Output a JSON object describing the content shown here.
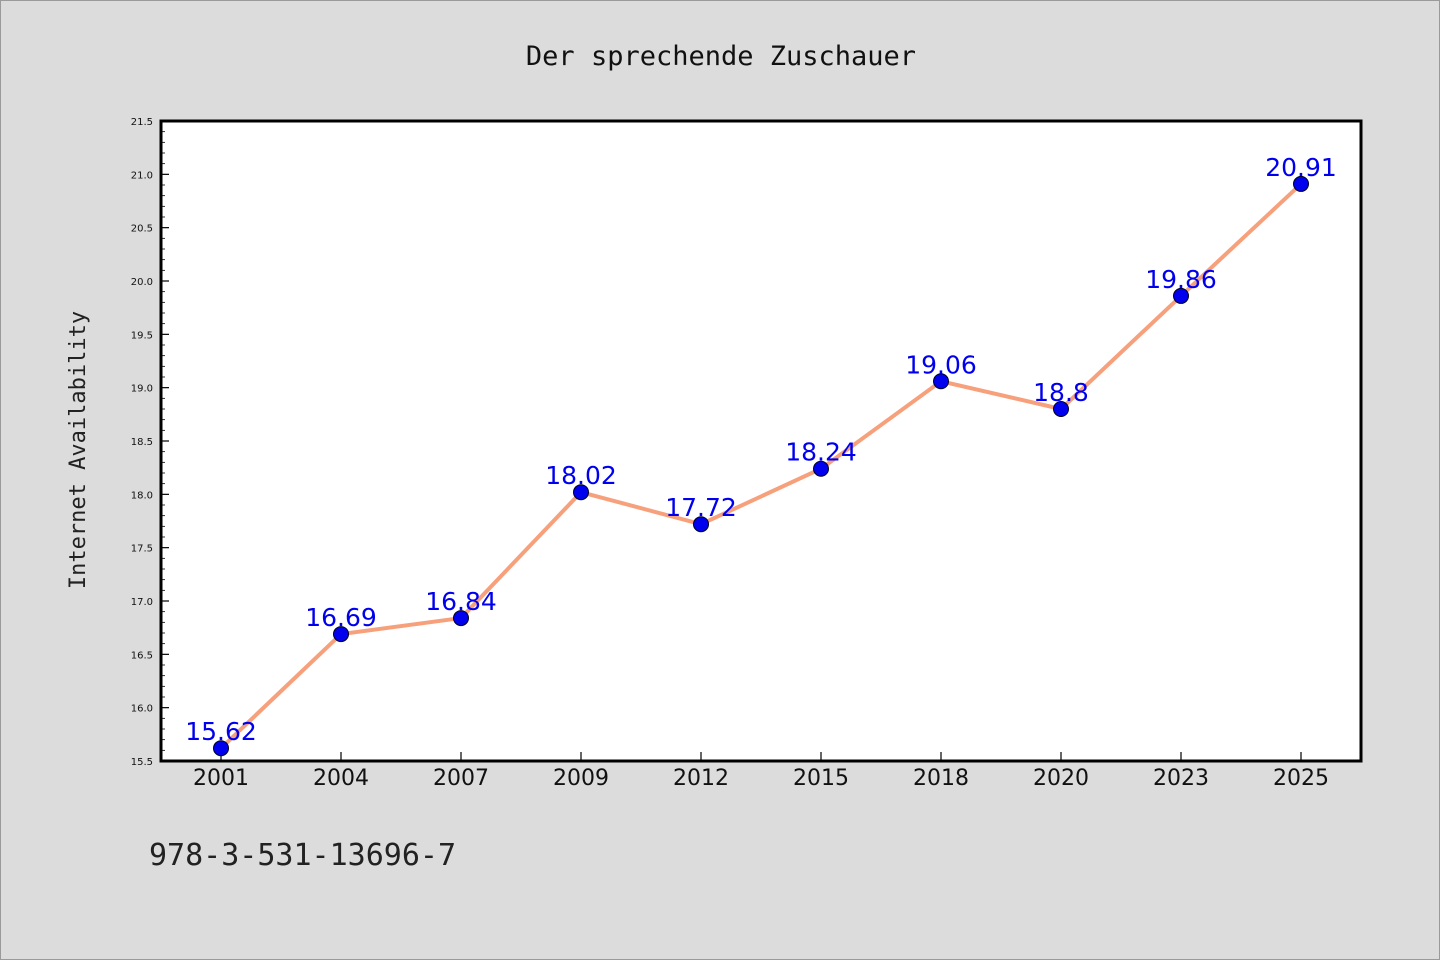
{
  "chart_data": {
    "type": "line",
    "title": "Der sprechende Zuschauer",
    "xlabel": "",
    "ylabel": "Internet Availability",
    "categories": [
      "2001",
      "2004",
      "2007",
      "2009",
      "2012",
      "2015",
      "2018",
      "2020",
      "2023",
      "2025"
    ],
    "series": [
      {
        "values": [
          15.62,
          16.69,
          16.84,
          18.02,
          17.72,
          18.24,
          19.06,
          18.8,
          19.86,
          20.91
        ],
        "data_labels": [
          "15.62",
          "16.69",
          "16.84",
          "18.02",
          "17.72",
          "18.24",
          "19.06",
          "18.8",
          "19.86",
          "20.91"
        ],
        "line_color": "#f7a07c",
        "marker_color": "#0000ee",
        "label_color": "#0000ee"
      }
    ],
    "ylim": [
      15.5,
      21.5
    ],
    "yticks": [
      "15.5",
      "16.0",
      "16.5",
      "17.0",
      "17.5",
      "18.0",
      "18.5",
      "19.0",
      "19.5",
      "20.0",
      "20.5",
      "21.0",
      "21.5"
    ],
    "grid": false,
    "legend": "none"
  },
  "footer": {
    "isbn": "978-3-531-13696-7"
  },
  "colors": {
    "background": "#dcdcdc",
    "plot_background": "#ffffff",
    "axis": "#000000"
  }
}
